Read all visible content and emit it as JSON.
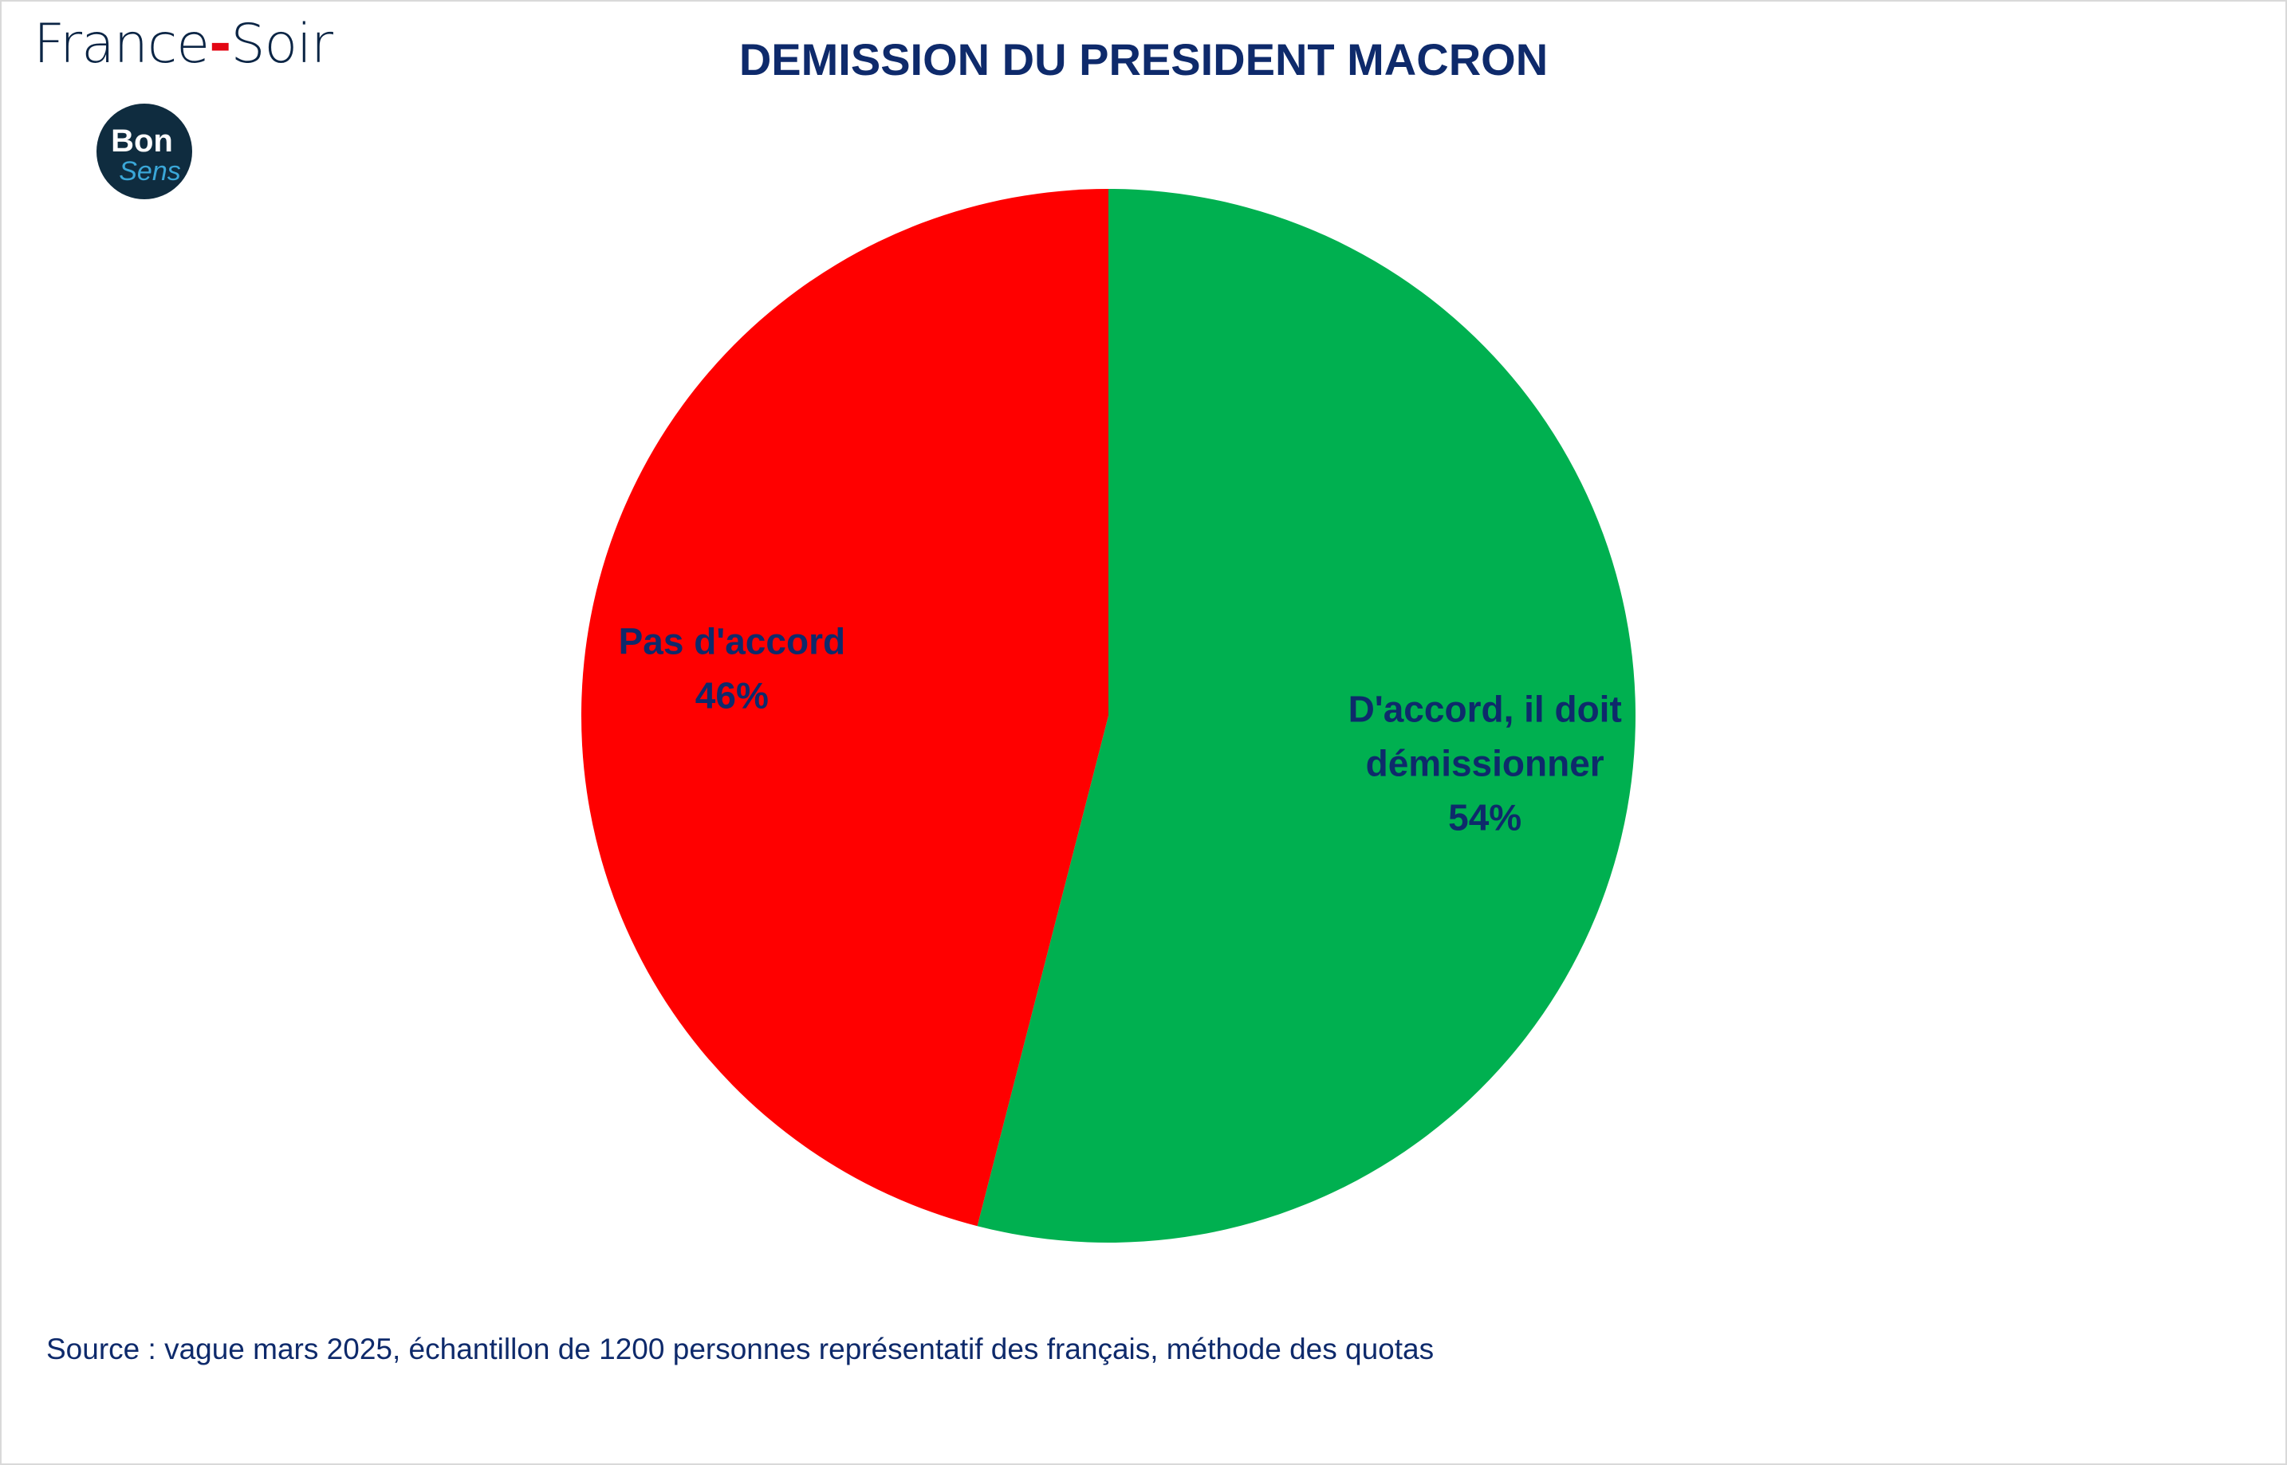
{
  "header": {
    "brand_left": "France",
    "brand_dash": "-",
    "brand_right": "Soir",
    "logo_text_top": "Bon",
    "logo_text_bottom": "Sens"
  },
  "chart_data": {
    "type": "pie",
    "title": "DEMISSION DU PRESIDENT MACRON",
    "slices": [
      {
        "label": "D'accord, il doit démissionner",
        "label_lines": [
          "D'accord, il doit",
          "démissionner"
        ],
        "value": 54,
        "value_label": "54%",
        "color": "#00b050"
      },
      {
        "label": "Pas d'accord",
        "label_lines": [
          "Pas d'accord"
        ],
        "value": 46,
        "value_label": "46%",
        "color": "#ff0000"
      }
    ],
    "start": "12 o'clock",
    "direction": "clockwise",
    "label_color": "#0e2a6b",
    "legend": "none"
  },
  "footer": {
    "source": "Source : vague mars 2025, échantillon de 1200 personnes représentatif des français, méthode des quotas"
  },
  "colors": {
    "brand_navy": "#0b2545",
    "brand_red": "#e30613",
    "title_navy": "#0e2a6b",
    "logo_bg": "#0f2c3f",
    "logo_accent": "#3aa7d8"
  }
}
